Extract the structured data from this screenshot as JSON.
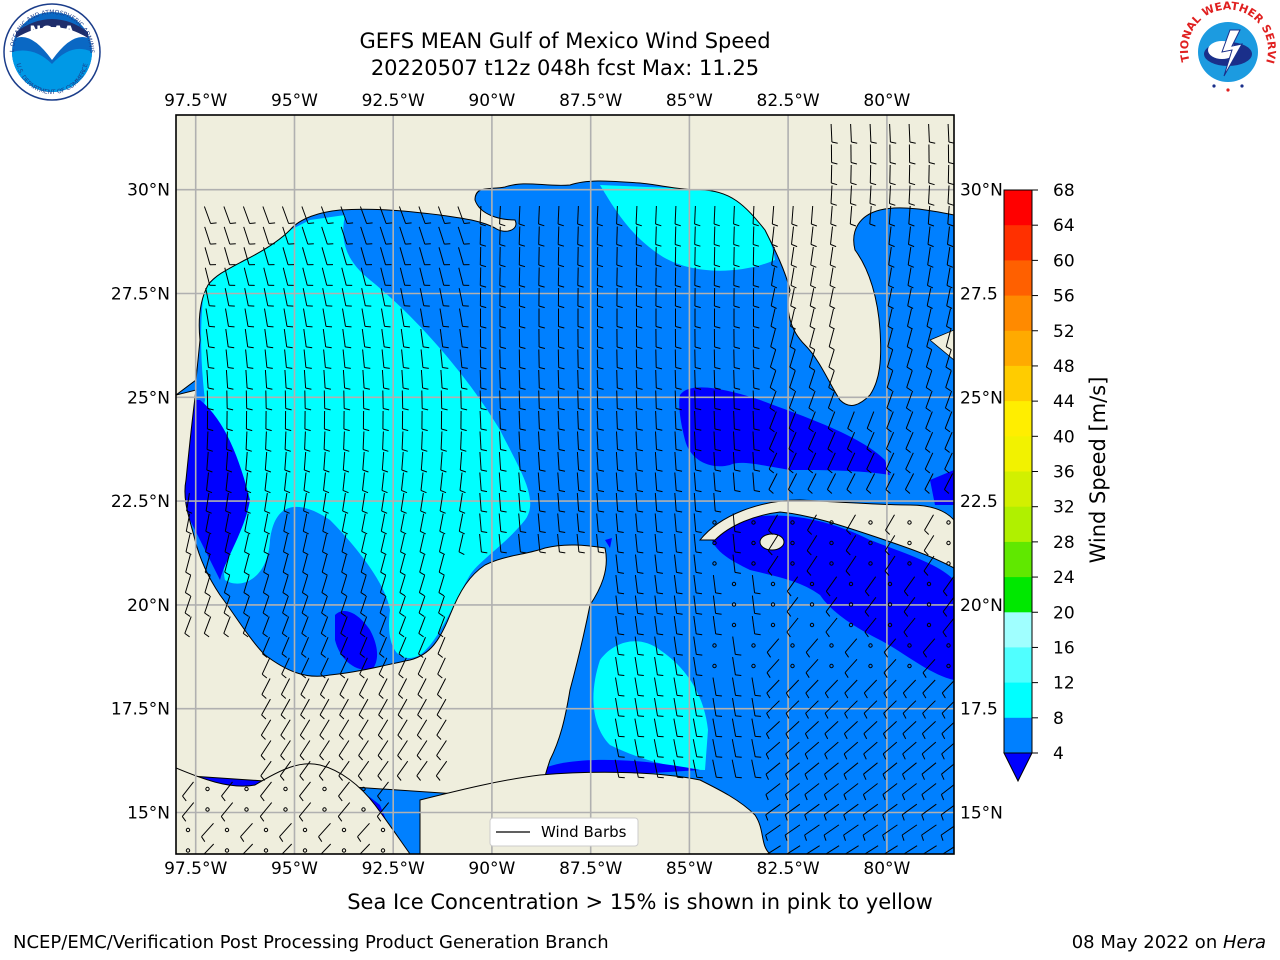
{
  "header": {
    "title_line1": "GEFS MEAN Gulf of Mexico Wind Speed",
    "title_line2": "20220507 t12z 048h fcst   Max: 11.25"
  },
  "logos": {
    "left": "NOAA",
    "right": "NATIONAL WEATHER SERVICE",
    "left_ring": "NATIONAL OCEANIC AND ATMOSPHERIC ADMINISTRATION",
    "left_ring_bottom": "U.S. DEPARTMENT OF COMMERCE"
  },
  "map": {
    "lon_labels": [
      "97.5°W",
      "95°W",
      "92.5°W",
      "90°W",
      "87.5°W",
      "85°W",
      "82.5°W",
      "80°W"
    ],
    "lat_labels": [
      "30°N",
      "27.5°N",
      "25°N",
      "22.5°N",
      "20°N",
      "17.5°N",
      "15°N"
    ],
    "lat_labels_right": [
      "30°N",
      "27.5",
      "25°N",
      "22.5",
      "20°N",
      "17.5",
      "15°N"
    ],
    "lon_values": [
      -97.5,
      -95,
      -92.5,
      -90,
      -87.5,
      -85,
      -82.5,
      -80
    ],
    "lat_values": [
      30,
      27.5,
      25,
      22.5,
      20,
      17.5,
      15
    ],
    "extent": {
      "lon_min": -98,
      "lon_max": -78.3,
      "lat_min": 14,
      "lat_max": 31.8
    },
    "legend_label": "Wind Barbs",
    "colors": {
      "land": "#efeedd",
      "ocean_4_8": "#0080ff",
      "ocean_8_12": "#00ffff",
      "ocean_lt4": "#0000ff",
      "grid": "#b0b0b0"
    }
  },
  "colorbar": {
    "ticks": [
      "68",
      "64",
      "60",
      "56",
      "52",
      "48",
      "44",
      "40",
      "36",
      "32",
      "28",
      "24",
      "20",
      "16",
      "12",
      "8",
      "4"
    ],
    "label": "Wind Speed [m/s]",
    "colors": [
      "#ff0000",
      "#ff3000",
      "#ff6000",
      "#ff8a00",
      "#ffaa00",
      "#ffcc00",
      "#ffee00",
      "#f2f200",
      "#d2f000",
      "#b0f000",
      "#60e800",
      "#00e800",
      "#50f070",
      "#a0ffff",
      "#50ffff",
      "#00ffff",
      "#0080ff"
    ]
  },
  "subtitle": "Sea Ice Concentration > 15% is shown in pink to yellow",
  "footer": {
    "left": "NCEP/EMC/Verification Post Processing Product Generation Branch",
    "right_date": "08 May 2022 on ",
    "right_host": "Hera"
  }
}
